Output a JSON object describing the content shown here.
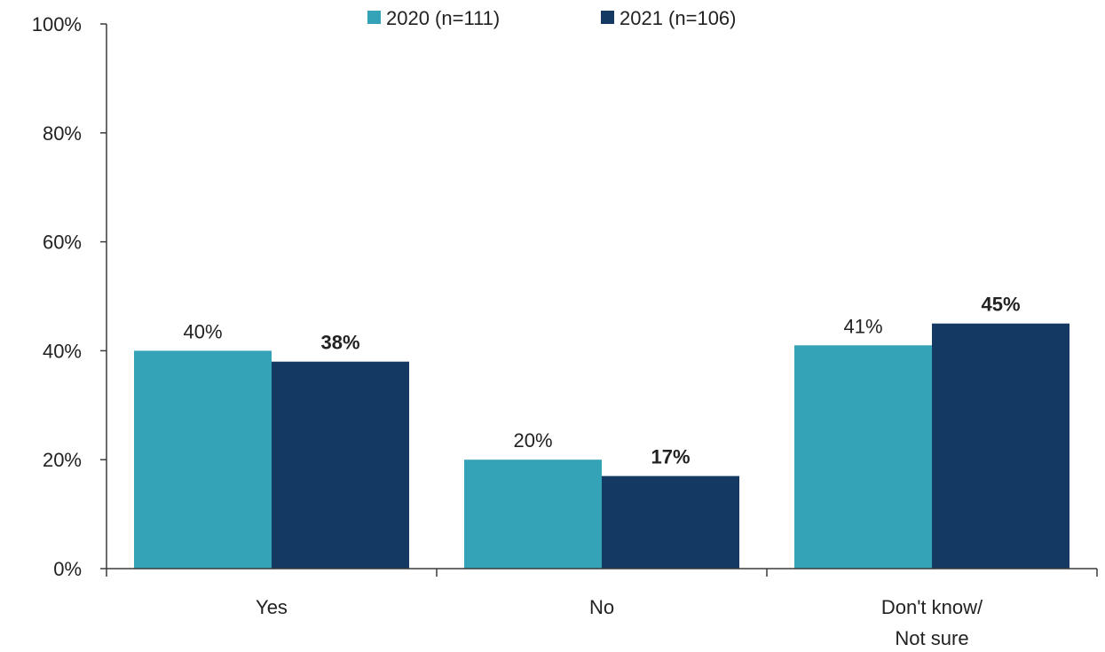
{
  "chart_data": {
    "type": "bar",
    "categories": [
      [
        "Yes"
      ],
      [
        "No"
      ],
      [
        "Don't know/",
        "Not sure"
      ]
    ],
    "series": [
      {
        "name": "2020 (n=111)",
        "color": "#35A3B7",
        "values": [
          40,
          20,
          41
        ],
        "labels": [
          "40%",
          "20%",
          "41%"
        ],
        "label_bold": false
      },
      {
        "name": "2021 (n=106)",
        "color": "#143A63",
        "values": [
          38,
          17,
          45
        ],
        "labels": [
          "38%",
          "17%",
          "45%"
        ],
        "label_bold": true
      }
    ],
    "ylim": [
      0,
      100
    ],
    "yticks": [
      0,
      20,
      40,
      60,
      80,
      100
    ],
    "ytick_labels": [
      "0%",
      "20%",
      "40%",
      "60%",
      "80%",
      "100%"
    ],
    "legend_position": "top-center",
    "grid": false
  }
}
